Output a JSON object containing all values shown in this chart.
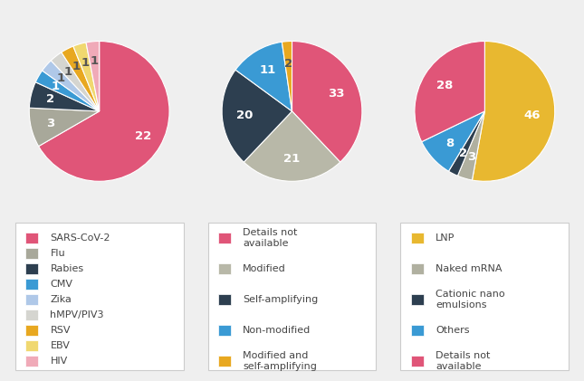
{
  "pie1": {
    "labels": [
      "SARS-CoV-2",
      "Flu",
      "Rabies",
      "CMV",
      "Zika",
      "hMPV/PIV3",
      "RSV",
      "EBV",
      "HIV"
    ],
    "values": [
      22,
      3,
      2,
      1,
      1,
      1,
      1,
      1,
      1
    ],
    "colors": [
      "#e05578",
      "#a8a89a",
      "#2d3f50",
      "#3a9ad4",
      "#afc8e8",
      "#d5d5d0",
      "#e8a820",
      "#f0d870",
      "#f0aab8"
    ],
    "text_colors": [
      "white",
      "white",
      "white",
      "white",
      "#555555",
      "#555555",
      "#555555",
      "#555555",
      "#555555"
    ]
  },
  "pie2": {
    "labels": [
      "Details not available",
      "Modified",
      "Self-amplifying",
      "Non-modified",
      "Modified and\nself-amplifying"
    ],
    "values": [
      33,
      21,
      20,
      11,
      2
    ],
    "colors": [
      "#e05578",
      "#b8b8a8",
      "#2d3f50",
      "#3a9ad4",
      "#e8a820"
    ],
    "text_colors": [
      "white",
      "white",
      "white",
      "white",
      "#555555"
    ]
  },
  "pie3": {
    "labels": [
      "LNP",
      "Naked mRNA",
      "Cationic nano\nemulsions",
      "Others",
      "Details not\navailable"
    ],
    "values": [
      46,
      3,
      2,
      8,
      28
    ],
    "colors": [
      "#e8b830",
      "#b0b0a0",
      "#2d3f50",
      "#3a9ad4",
      "#e05578"
    ],
    "text_colors": [
      "white",
      "white",
      "white",
      "white",
      "white"
    ]
  },
  "bg_color": "#efefef",
  "legend_bg": "#ffffff",
  "text_color": "#444444",
  "legend_fontsize": 8.0,
  "value_fontsize": 9.5
}
